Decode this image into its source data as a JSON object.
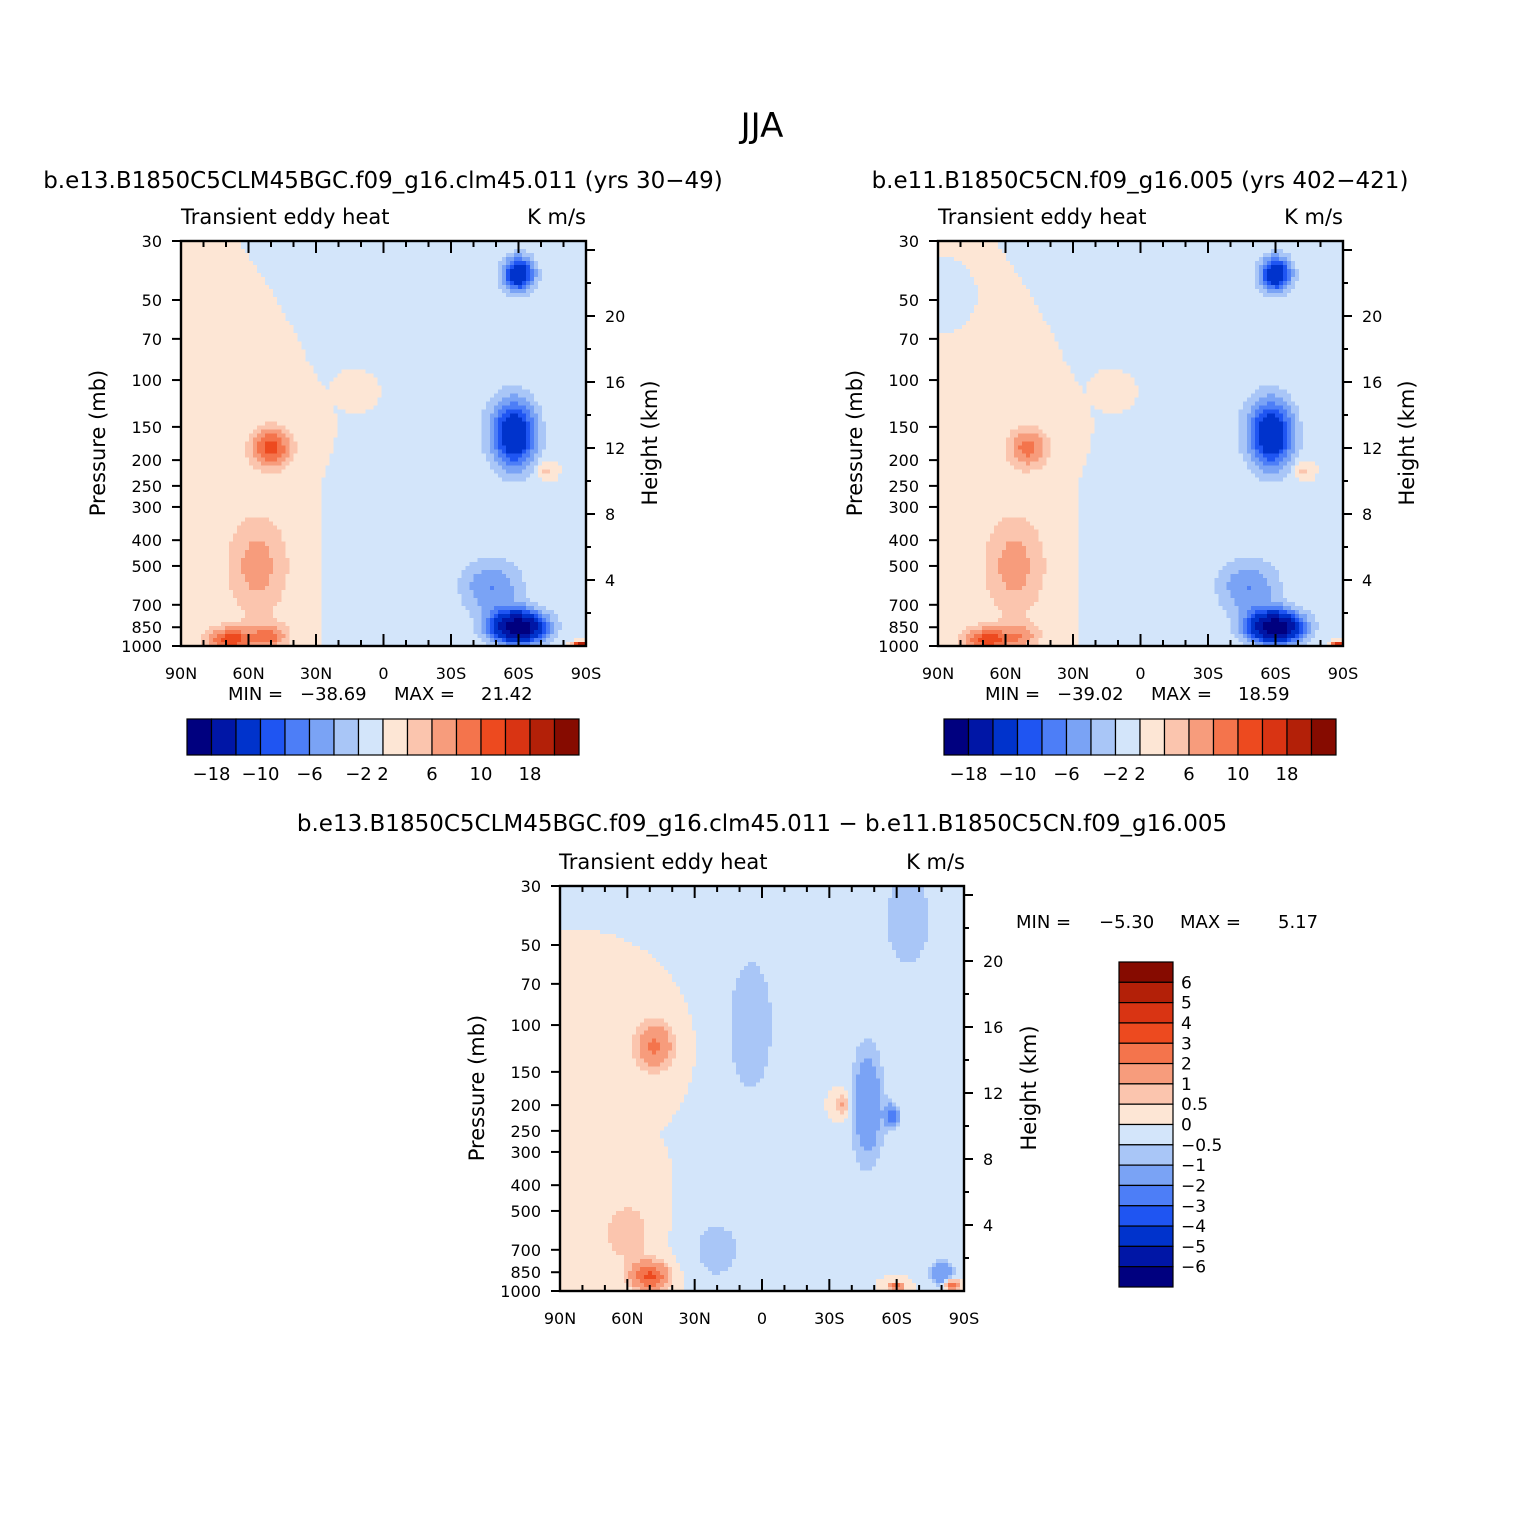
{
  "figure": {
    "title": "JJA"
  },
  "palettes": {
    "main": [
      "#00007f",
      "#0016a6",
      "#0033cc",
      "#1f55f2",
      "#4d7ef7",
      "#7aa3f5",
      "#a9c6f7",
      "#d3e5fa",
      "#fde6d5",
      "#fbc5ae",
      "#f79c7c",
      "#f4744c",
      "#ed4a1f",
      "#d93413",
      "#b32008",
      "#860b00"
    ],
    "diff": [
      "#00007f",
      "#0016a6",
      "#0033cc",
      "#1f55f2",
      "#4d7ef7",
      "#7aa3f5",
      "#a9c6f7",
      "#d3e5fa",
      "#fde6d5",
      "#fbc5ae",
      "#f79c7c",
      "#f4744c",
      "#ed4a1f",
      "#d93413",
      "#b32008",
      "#860b00"
    ]
  },
  "chart_data": [
    {
      "type": "heatmap",
      "panel_title": "b.e13.B1850C5CLM45BGC.f09_g16.clm45.011 (yrs 30-49)",
      "left_label": "Transient eddy heat",
      "right_label": "K m/s",
      "ylabel": "Pressure (mb)",
      "ylabel2": "Height (km)",
      "x_ticks": [
        "90N",
        "60N",
        "30N",
        "0",
        "30S",
        "60S",
        "90S"
      ],
      "x_lat": [
        90,
        60,
        30,
        0,
        -30,
        -60,
        -90
      ],
      "y_ticks": [
        "30",
        "50",
        "70",
        "100",
        "150",
        "200",
        "250",
        "300",
        "400",
        "500",
        "700",
        "850",
        "1000"
      ],
      "y_values": [
        30,
        50,
        70,
        100,
        150,
        200,
        250,
        300,
        400,
        500,
        700,
        850,
        1000
      ],
      "y2_ticks": [
        "4",
        "8",
        "12",
        "16",
        "20"
      ],
      "y2_values": [
        4,
        8,
        12,
        16,
        20
      ],
      "ylim": [
        1000,
        30
      ],
      "min_label": "MIN =",
      "min_value": "-38.69",
      "max_label": "MAX =",
      "max_value": "21.42",
      "colorbar_labels": [
        "-18",
        "-10",
        "-6",
        "-2",
        "2",
        "6",
        "10",
        "18"
      ],
      "levels": [
        -18,
        -14,
        -10,
        -8,
        -6,
        -4,
        -2,
        0,
        2,
        4,
        6,
        8,
        10,
        14,
        18
      ],
      "features": [
        {
          "lat": 50,
          "p": 180,
          "amp": 9,
          "wlat": 9,
          "wlogp": 0.18
        },
        {
          "lat": 56,
          "p": 500,
          "amp": 5,
          "wlat": 14,
          "wlogp": 0.45
        },
        {
          "lat": 68,
          "p": 950,
          "amp": 9,
          "wlat": 11,
          "wlogp": 0.11
        },
        {
          "lat": 50,
          "p": 920,
          "amp": 6,
          "wlat": 8,
          "wlogp": 0.11
        },
        {
          "lat": 10,
          "p": 110,
          "amp": 2,
          "wlat": 4,
          "wlogp": 0.07
        },
        {
          "lat": -72,
          "p": 220,
          "amp": 3,
          "wlat": 4,
          "wlogp": 0.07
        },
        {
          "lat": -88,
          "p": 990,
          "amp": 18,
          "wlat": 3,
          "wlogp": 0.025
        },
        {
          "lat": -58,
          "p": 160,
          "amp": -14,
          "wlat": 10,
          "wlogp": 0.3
        },
        {
          "lat": -60,
          "p": 40,
          "amp": -14,
          "wlat": 7,
          "wlogp": 0.15
        },
        {
          "lat": -60,
          "p": 850,
          "amp": -22,
          "wlat": 12,
          "wlogp": 0.14
        },
        {
          "lat": -48,
          "p": 600,
          "amp": -6,
          "wlat": 14,
          "wlogp": 0.25
        },
        {
          "lat": -32,
          "p": 90,
          "amp": -1.4,
          "wlat": 16,
          "wlogp": 0.8
        },
        {
          "lat": 12,
          "p": 500,
          "amp": -1.5,
          "wlat": 10,
          "wlogp": 0.4
        },
        {
          "lat": -80,
          "p": 400,
          "amp": -1.2,
          "wlat": 6,
          "wlogp": 0.4
        }
      ]
    },
    {
      "type": "heatmap",
      "panel_title": "b.e11.B1850C5CN.f09_g16.005 (yrs 402-421)",
      "left_label": "Transient eddy heat",
      "right_label": "K m/s",
      "ylabel": "Pressure (mb)",
      "ylabel2": "Height (km)",
      "x_ticks": [
        "90N",
        "60N",
        "30N",
        "0",
        "30S",
        "60S",
        "90S"
      ],
      "x_lat": [
        90,
        60,
        30,
        0,
        -30,
        -60,
        -90
      ],
      "y_ticks": [
        "30",
        "50",
        "70",
        "100",
        "150",
        "200",
        "250",
        "300",
        "400",
        "500",
        "700",
        "850",
        "1000"
      ],
      "y_values": [
        30,
        50,
        70,
        100,
        150,
        200,
        250,
        300,
        400,
        500,
        700,
        850,
        1000
      ],
      "y2_ticks": [
        "4",
        "8",
        "12",
        "16",
        "20"
      ],
      "y2_values": [
        4,
        8,
        12,
        16,
        20
      ],
      "ylim": [
        1000,
        30
      ],
      "min_label": "MIN =",
      "min_value": "-39.02",
      "max_label": "MAX =",
      "max_value": "18.59",
      "colorbar_labels": [
        "-18",
        "-10",
        "-6",
        "-2",
        "2",
        "6",
        "10",
        "18"
      ],
      "levels": [
        -18,
        -14,
        -10,
        -8,
        -6,
        -4,
        -2,
        0,
        2,
        4,
        6,
        8,
        10,
        14,
        18
      ],
      "features": [
        {
          "lat": 50,
          "p": 180,
          "amp": 7,
          "wlat": 9,
          "wlogp": 0.18
        },
        {
          "lat": 56,
          "p": 500,
          "amp": 5,
          "wlat": 14,
          "wlogp": 0.45
        },
        {
          "lat": 68,
          "p": 950,
          "amp": 9,
          "wlat": 11,
          "wlogp": 0.11
        },
        {
          "lat": 52,
          "p": 920,
          "amp": 4,
          "wlat": 8,
          "wlogp": 0.11
        },
        {
          "lat": 10,
          "p": 110,
          "amp": 2,
          "wlat": 4,
          "wlogp": 0.07
        },
        {
          "lat": -72,
          "p": 220,
          "amp": 3,
          "wlat": 4,
          "wlogp": 0.07
        },
        {
          "lat": -88,
          "p": 990,
          "amp": 16,
          "wlat": 3,
          "wlogp": 0.025
        },
        {
          "lat": -58,
          "p": 160,
          "amp": -14,
          "wlat": 10,
          "wlogp": 0.3
        },
        {
          "lat": -60,
          "p": 40,
          "amp": -14,
          "wlat": 7,
          "wlogp": 0.15
        },
        {
          "lat": -60,
          "p": 850,
          "amp": -22,
          "wlat": 12,
          "wlogp": 0.14
        },
        {
          "lat": -48,
          "p": 600,
          "amp": -6,
          "wlat": 14,
          "wlogp": 0.25
        },
        {
          "lat": -32,
          "p": 90,
          "amp": -1.4,
          "wlat": 16,
          "wlogp": 0.8
        },
        {
          "lat": 12,
          "p": 500,
          "amp": -1.5,
          "wlat": 10,
          "wlogp": 0.4
        },
        {
          "lat": -80,
          "p": 400,
          "amp": -1.2,
          "wlat": 6,
          "wlogp": 0.4
        },
        {
          "lat": 88,
          "p": 50,
          "amp": -1.5,
          "wlat": 3,
          "wlogp": 0.06
        }
      ]
    },
    {
      "type": "heatmap",
      "panel_title": "b.e13.B1850C5CLM45BGC.f09_g16.clm45.011 - b.e11.B1850C5CN.f09_g16.005",
      "left_label": "Transient eddy heat",
      "right_label": "K m/s",
      "ylabel": "Pressure (mb)",
      "ylabel2": "Height (km)",
      "x_ticks": [
        "90N",
        "60N",
        "30N",
        "0",
        "30S",
        "60S",
        "90S"
      ],
      "x_lat": [
        90,
        60,
        30,
        0,
        -30,
        -60,
        -90
      ],
      "y_ticks": [
        "30",
        "50",
        "70",
        "100",
        "150",
        "200",
        "250",
        "300",
        "400",
        "500",
        "700",
        "850",
        "1000"
      ],
      "y_values": [
        30,
        50,
        70,
        100,
        150,
        200,
        250,
        300,
        400,
        500,
        700,
        850,
        1000
      ],
      "y2_ticks": [
        "4",
        "8",
        "12",
        "16",
        "20"
      ],
      "y2_values": [
        4,
        8,
        12,
        16,
        20
      ],
      "ylim": [
        1000,
        30
      ],
      "min_label": "MIN =",
      "min_value": "-5.30",
      "max_label": "MAX =",
      "max_value": "5.17",
      "colorbar_labels": [
        "6",
        "5",
        "4",
        "3",
        "2",
        "1",
        "0.5",
        "0",
        "-0.5",
        "-1",
        "-2",
        "-3",
        "-4",
        "-5",
        "-6"
      ],
      "levels": [
        -6,
        -5,
        -4,
        -3,
        -2,
        -1,
        -0.5,
        0,
        0.5,
        1,
        2,
        3,
        4,
        5,
        6
      ],
      "features": [
        {
          "lat": 48,
          "p": 120,
          "amp": 2.2,
          "wlat": 8,
          "wlogp": 0.2
        },
        {
          "lat": 50,
          "p": 880,
          "amp": 3.2,
          "wlat": 8,
          "wlogp": 0.12
        },
        {
          "lat": 60,
          "p": 600,
          "amp": 1.0,
          "wlat": 10,
          "wlogp": 0.25
        },
        {
          "lat": -36,
          "p": 200,
          "amp": 1.2,
          "wlat": 3,
          "wlogp": 0.1
        },
        {
          "lat": -60,
          "p": 960,
          "amp": 3.5,
          "wlat": 3,
          "wlogp": 0.03
        },
        {
          "lat": -85,
          "p": 950,
          "amp": 3.0,
          "wlat": 3,
          "wlogp": 0.04
        },
        {
          "lat": 5,
          "p": 100,
          "amp": -0.9,
          "wlat": 12,
          "wlogp": 0.7
        },
        {
          "lat": -47,
          "p": 200,
          "amp": -1.9,
          "wlat": 7,
          "wlogp": 0.5
        },
        {
          "lat": -58,
          "p": 220,
          "amp": -2.5,
          "wlat": 3,
          "wlogp": 0.1
        },
        {
          "lat": -80,
          "p": 850,
          "amp": -2.0,
          "wlat": 5,
          "wlogp": 0.1
        },
        {
          "lat": -65,
          "p": 40,
          "amp": -0.9,
          "wlat": 12,
          "wlogp": 0.5
        },
        {
          "lat": 20,
          "p": 700,
          "amp": -0.8,
          "wlat": 12,
          "wlogp": 0.3
        }
      ]
    }
  ]
}
